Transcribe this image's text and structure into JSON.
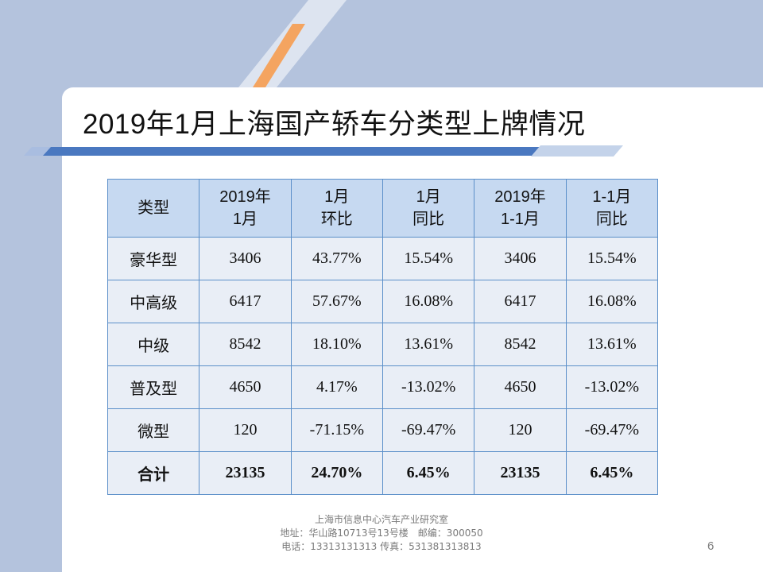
{
  "slide": {
    "title": "2019年1月上海国产轿车分类型上牌情况",
    "page_number": "6"
  },
  "colors": {
    "background_blue": "#b4c3dd",
    "accent_orange": "#f4a460",
    "stripe_blue": "#4a78c0",
    "table_header_fill": "#c6d9f1",
    "table_body_fill": "#e9eef6",
    "table_border": "#5b8fc9"
  },
  "table": {
    "headers": [
      [
        "类型"
      ],
      [
        "2019年",
        "1月"
      ],
      [
        "1月",
        "环比"
      ],
      [
        "1月",
        "同比"
      ],
      [
        "2019年",
        "1-1月"
      ],
      [
        "1-1月",
        "同比"
      ]
    ],
    "rows": [
      [
        "豪华型",
        "3406",
        "43.77%",
        "15.54%",
        "3406",
        "15.54%"
      ],
      [
        "中高级",
        "6417",
        "57.67%",
        "16.08%",
        "6417",
        "16.08%"
      ],
      [
        "中级",
        "8542",
        "18.10%",
        "13.61%",
        "8542",
        "13.61%"
      ],
      [
        "普及型",
        "4650",
        "4.17%",
        "-13.02%",
        "4650",
        "-13.02%"
      ],
      [
        "微型",
        "120",
        "-71.15%",
        "-69.47%",
        "120",
        "-69.47%"
      ]
    ],
    "total": [
      "合计",
      "23135",
      "24.70%",
      "6.45%",
      "23135",
      "6.45%"
    ]
  },
  "footer": {
    "line1": "上海市信息中心汽车产业研究室",
    "line2": "地址：华山路10713号13号楼　邮编：300050",
    "line3": "电话：13313131313 传真：531381313813"
  }
}
